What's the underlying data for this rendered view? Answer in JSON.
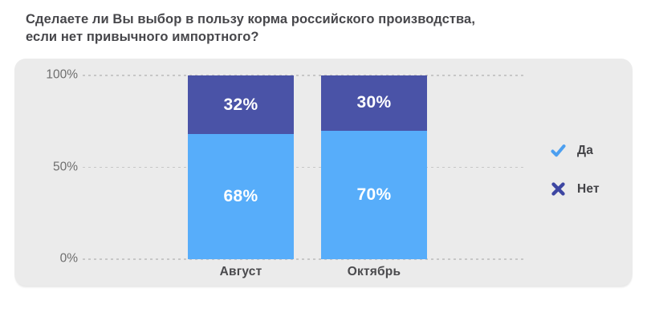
{
  "title": {
    "text": "Сделаете ли Вы выбор в пользу корма российского производства,\nесли нет привычного импортного?"
  },
  "colors": {
    "panel_bg": "#ebebeb",
    "gridline": "#c7c7c7",
    "title_text": "#47474b",
    "axis_text": "#6e6e6e",
    "category_text": "#4a4a4d",
    "bar_value_text": "#ffffff",
    "yes_blue": "#57adfa",
    "no_indigo": "#4a53a7",
    "legend_check": "#4c9ff0",
    "legend_cross": "#3d46a2"
  },
  "icons": {
    "yes": "check-icon",
    "no": "cross-icon"
  },
  "chart_data": {
    "type": "bar",
    "stacked": true,
    "title": "Сделаете ли Вы выбор в пользу корма российского производства, если нет привычного импортного?",
    "categories": [
      "Август",
      "Октябрь"
    ],
    "series": [
      {
        "name": "Да",
        "color": "#57adfa",
        "marker": "check",
        "values": [
          68,
          70
        ]
      },
      {
        "name": "Нет",
        "color": "#4a53a7",
        "marker": "cross",
        "values": [
          32,
          30
        ]
      }
    ],
    "value_suffix": "%",
    "data_labels": [
      [
        "68%",
        "70%"
      ],
      [
        "32%",
        "30%"
      ]
    ],
    "y_ticks": [
      "100%",
      "50%",
      "0%"
    ],
    "ylim": [
      0,
      100
    ],
    "grid": "dashed-horizontal",
    "legend_position": "right"
  }
}
